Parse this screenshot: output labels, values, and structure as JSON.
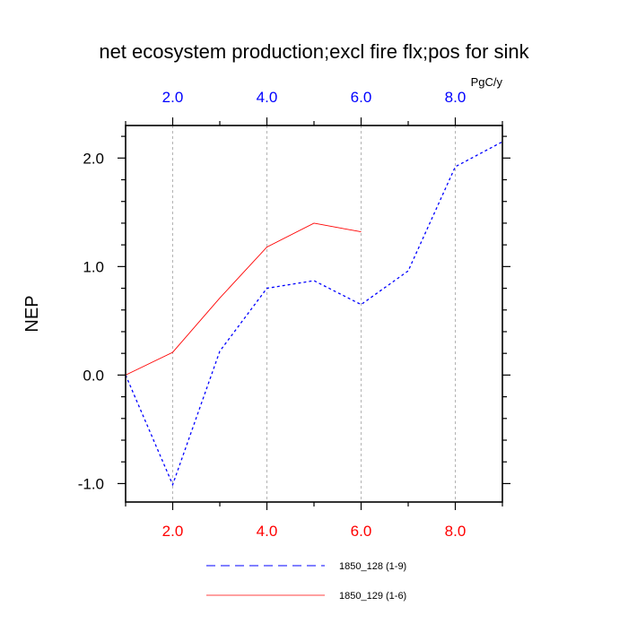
{
  "chart_data": {
    "type": "line",
    "title": "net ecosystem production;excl fire flx;pos for sink",
    "ylabel": "NEP",
    "units": "PgC/y",
    "xlim": [
      1,
      9
    ],
    "ylim": [
      -1.17,
      2.3
    ],
    "grid": {
      "vertical_dashed_at_major_ticks": true
    },
    "x_ticks": [
      2,
      4,
      6,
      8
    ],
    "x_tick_labels_bottom": [
      "2.0",
      "4.0",
      "6.0",
      "8.0"
    ],
    "x_tick_labels_top": [
      "2.0",
      "4.0",
      "6.0",
      "8.0"
    ],
    "y_ticks": [
      -1,
      0,
      1,
      2
    ],
    "y_tick_labels": [
      "-1.0",
      "0.0",
      "1.0",
      "2.0"
    ],
    "bottom_axis_color": "#ff0000",
    "top_axis_color": "#0000ff",
    "series": [
      {
        "name": "1850_128 (1-9)",
        "color": "#0000ff",
        "dash": "dashed",
        "x": [
          1,
          2,
          3,
          4,
          5,
          6,
          7,
          8,
          9
        ],
        "y": [
          0.0,
          -1.01,
          0.22,
          0.8,
          0.87,
          0.65,
          0.96,
          1.92,
          2.15
        ]
      },
      {
        "name": "1850_129 (1-6)",
        "color": "#ff0000",
        "dash": "solid",
        "x": [
          1,
          2,
          3,
          4,
          5,
          6
        ],
        "y": [
          0.0,
          0.21,
          0.71,
          1.18,
          1.4,
          1.32
        ]
      }
    ],
    "legend": {
      "position": "bottom"
    }
  }
}
